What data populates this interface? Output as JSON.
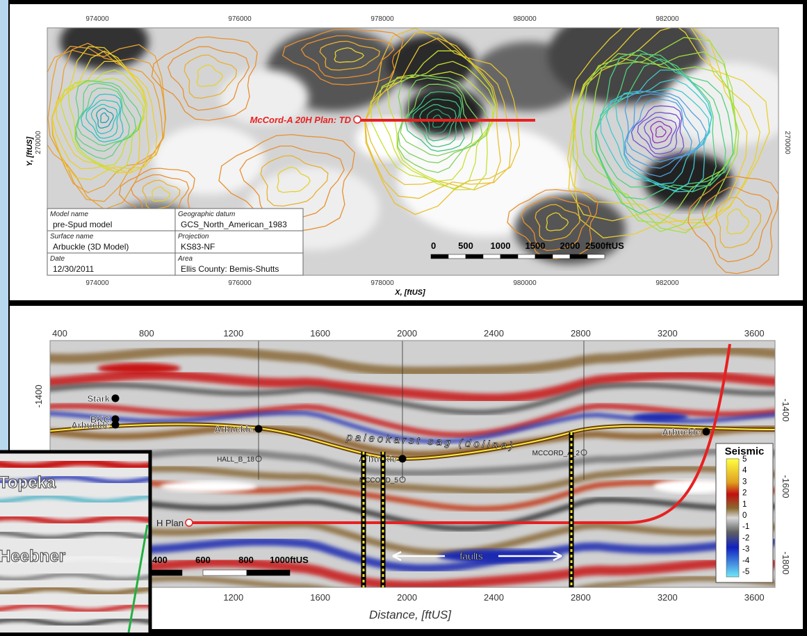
{
  "map": {
    "x_ticks": [
      "974000",
      "976000",
      "978000",
      "980000",
      "982000"
    ],
    "y_tick": "270000",
    "x_label": "X, [ftUS]",
    "y_label": "Y, [ftUS]",
    "well_label": "McCord-A 20H Plan: TD",
    "info": [
      [
        "Model name",
        "pre-Spud model",
        "Geographic datum",
        "GCS_North_American_1983"
      ],
      [
        "Surface name",
        "Arbuckle (3D Model)",
        "Projection",
        "KS83-NF"
      ],
      [
        "Date",
        "12/30/2011",
        "Area",
        "Ellis County: Bemis-Shutts"
      ]
    ],
    "scale_bar": [
      "0",
      "500",
      "1000",
      "1500",
      "2000",
      "2500ftUS"
    ]
  },
  "section": {
    "top_ticks": [
      "400",
      "800",
      "1200",
      "1600",
      "2000",
      "2400",
      "2800",
      "3200",
      "3600"
    ],
    "bottom_ticks": [
      "1200",
      "1600",
      "2000",
      "2400",
      "2800",
      "3200",
      "3600"
    ],
    "x_label": "Distance, [ftUS]",
    "right_ticks": [
      "-1400",
      "-1600",
      "-1800"
    ],
    "left_tick": "-1400",
    "markers": [
      "Stark",
      "BKC",
      "Arbuckle",
      "Arbuckle",
      "Arbuckle",
      "Arbuckle"
    ],
    "wells": [
      "HALL_B_18",
      "MCCORD_5",
      "MCCORD_A_2"
    ],
    "plan_label": "H Plan",
    "sag_label": "paleokarst sag (doline)",
    "faults_label": "faults",
    "scale_bar": [
      "400",
      "600",
      "800",
      "1000ftUS"
    ],
    "colorbar": {
      "title": "Seismic",
      "labels": [
        "5",
        "4",
        "3",
        "2",
        "1",
        "0",
        "-1",
        "-2",
        "-3",
        "-4",
        "-5"
      ]
    }
  },
  "inset": {
    "labels": [
      "Topeka",
      "Heebner"
    ]
  }
}
